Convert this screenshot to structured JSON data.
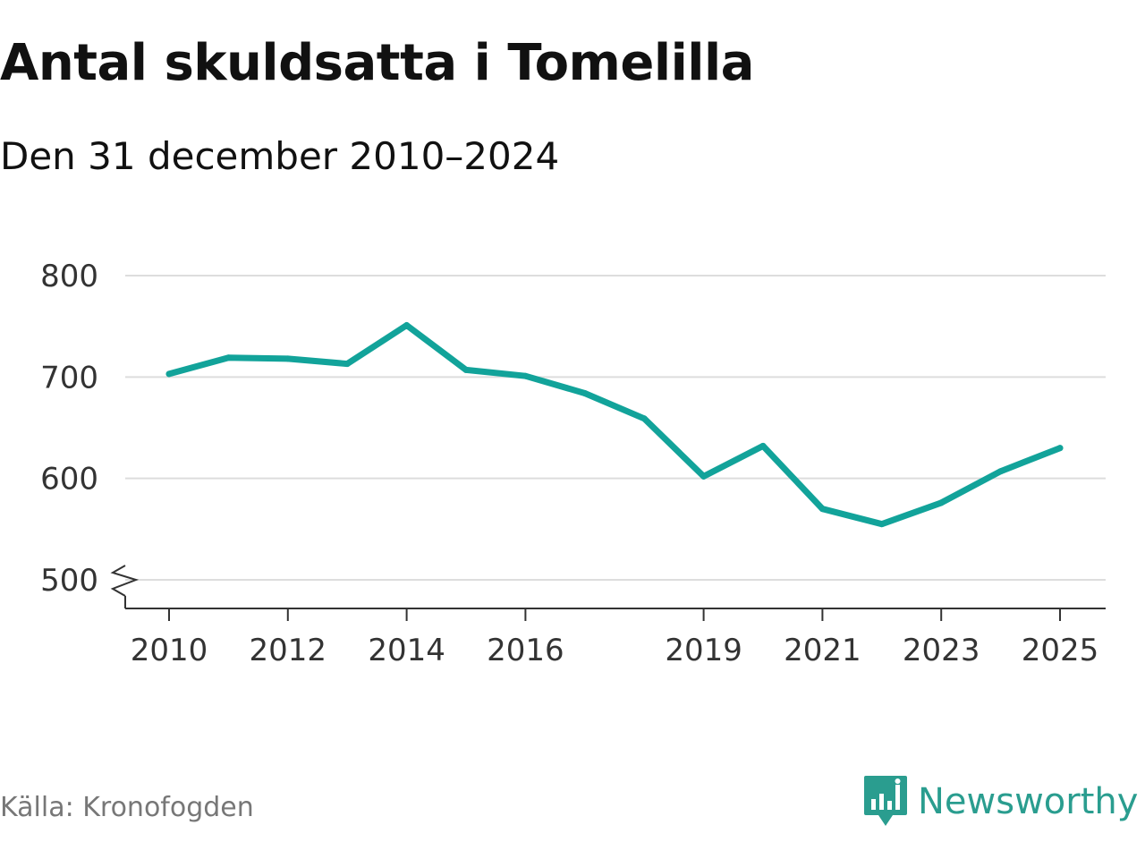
{
  "title": "Antal skuldsatta i Tomelilla",
  "subtitle": "Den 31 december 2010–2024",
  "source": "Källa: Kronofogden",
  "brand": "Newsworthy",
  "colors": {
    "line": "#12a39a",
    "grid": "#dddddd",
    "axis": "#333333",
    "brand": "#2a9d8f"
  },
  "chart_data": {
    "type": "line",
    "title": "Antal skuldsatta i Tomelilla",
    "subtitle": "Den 31 december 2010–2024",
    "xlabel": "",
    "ylabel": "",
    "xlim": [
      2009.7,
      2025.8
    ],
    "ylim": [
      472,
      800
    ],
    "y_axis_break": true,
    "grid": true,
    "x_ticks": [
      2010,
      2012,
      2014,
      2016,
      2019,
      2021,
      2023,
      2025
    ],
    "y_ticks": [
      500,
      600,
      700,
      800
    ],
    "series": [
      {
        "name": "Antal skuldsatta",
        "x": [
          2010,
          2011,
          2012,
          2013,
          2014,
          2015,
          2016,
          2017,
          2018,
          2019,
          2020,
          2021,
          2022,
          2023,
          2024,
          2025
        ],
        "values": [
          703,
          719,
          718,
          713,
          751,
          707,
          701,
          684,
          659,
          602,
          632,
          570,
          555,
          576,
          607,
          630
        ]
      }
    ]
  }
}
